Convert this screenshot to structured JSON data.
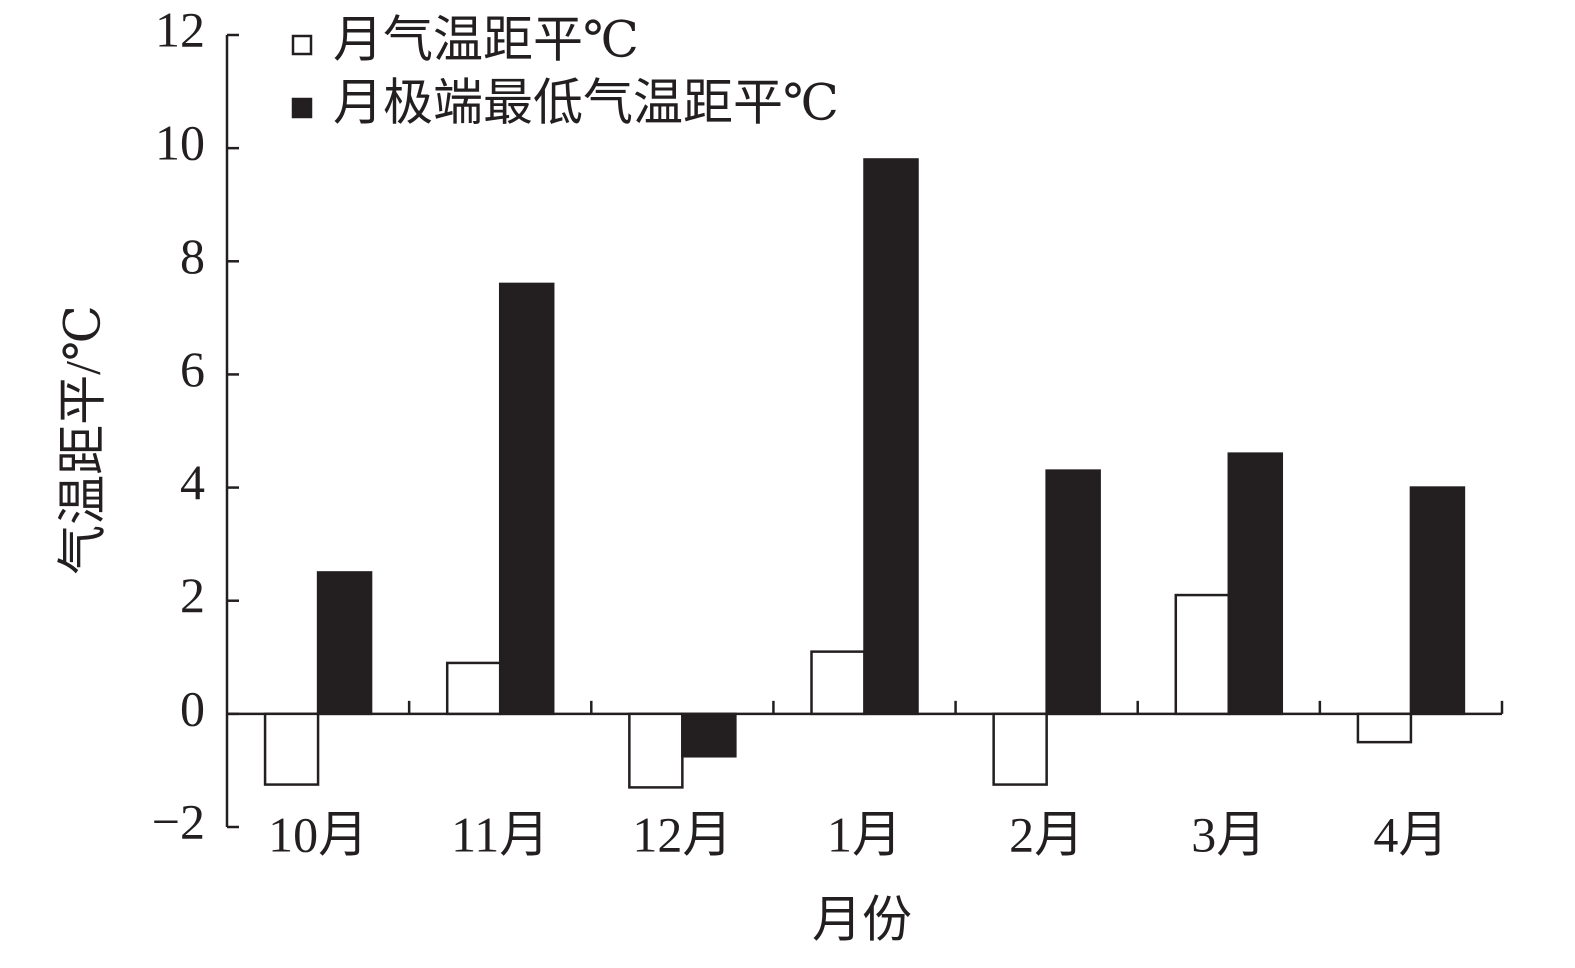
{
  "chart_data": {
    "type": "bar",
    "x_label": "月份",
    "y_label": "气温距平/℃",
    "categories": [
      "10月",
      "11月",
      "12月",
      "1月",
      "2月",
      "3月",
      "4月"
    ],
    "series": [
      {
        "name": "月气温距平℃",
        "color": "#ffffff",
        "values": [
          -1.25,
          0.9,
          -1.3,
          1.1,
          -1.25,
          2.1,
          -0.5
        ]
      },
      {
        "name": "月极端最低气温距平℃",
        "color": "#231f20",
        "values": [
          2.5,
          7.6,
          -0.75,
          9.8,
          4.3,
          4.6,
          4.0
        ]
      }
    ],
    "ylim": [
      -2,
      12
    ],
    "yticks": [
      {
        "value": -2,
        "label": "−2"
      },
      0,
      2,
      4,
      6,
      8,
      10,
      12
    ],
    "legend": "top-left"
  }
}
